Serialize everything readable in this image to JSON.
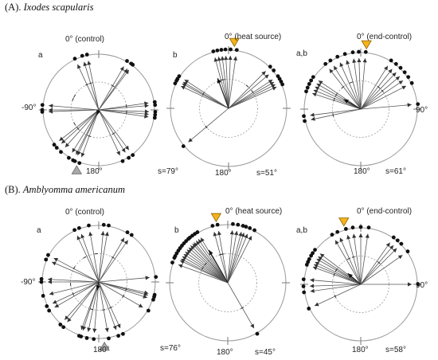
{
  "panels": [
    {
      "letter": "(A)",
      "species": "Ixodes scapularis"
    },
    {
      "letter": "(B)",
      "species": "Amblyomma americanum"
    }
  ],
  "chart_data": [
    {
      "type": "circular",
      "group_label": "a",
      "zero_label": "0° (control)",
      "side_label": "-90°",
      "bottom_label": "180°",
      "s_label": "s=79°",
      "mean_direction_deg": 200,
      "mean_vector_r": 0.1,
      "stimulus_marker": "grey triangle at 200°",
      "directions_deg": [
        335,
        343,
        348,
        30,
        35,
        37,
        268,
        270,
        275,
        82,
        85,
        92,
        95,
        98,
        143,
        148,
        155,
        200,
        205,
        207,
        212,
        222,
        228,
        232
      ],
      "hash_deg": [
        335,
        343,
        300,
        30,
        240,
        292,
        82,
        95,
        148,
        200,
        228
      ]
    },
    {
      "type": "circular",
      "group_label": "b",
      "zero_label": "0° (heat source)",
      "side_label": "",
      "bottom_label": "180°",
      "s_label": "s=51°",
      "mean_direction_deg": 340,
      "mean_vector_r": 0.55,
      "stimulus_marker": "orange triangle at 5°",
      "directions_deg": [
        345,
        349,
        353,
        357,
        2,
        8,
        295,
        298,
        300,
        303,
        45,
        50,
        57,
        60,
        63,
        66,
        230
      ],
      "hash_deg": [
        345,
        350,
        300,
        40,
        55,
        230
      ]
    },
    {
      "type": "circular",
      "group_label": "a,b",
      "zero_label": "0° (end-control)",
      "side_label": "90°",
      "bottom_label": "180°",
      "s_label": "s=61°",
      "mean_direction_deg": 300,
      "mean_vector_r": 0.35,
      "stimulus_marker": "orange triangle at 5°",
      "directions_deg": [
        322,
        328,
        336,
        344,
        352,
        358,
        5,
        288,
        292,
        296,
        300,
        304,
        258,
        263,
        32,
        38,
        44,
        50,
        56,
        63,
        85
      ],
      "hash_deg": [
        320,
        340,
        290,
        300,
        258,
        40,
        50
      ]
    },
    {
      "type": "circular",
      "group_label": "a",
      "zero_label": "0° (control)",
      "side_label": "-90°",
      "bottom_label": "180°",
      "s_label": "s=76°",
      "mean_direction_deg": 190,
      "mean_vector_r": 0.15,
      "stimulus_marker": "grey triangle at 175°",
      "directions_deg": [
        335,
        340,
        350,
        5,
        10,
        30,
        35,
        293,
        298,
        270,
        273,
        256,
        240,
        245,
        218,
        222,
        192,
        198,
        200,
        185,
        170,
        160,
        155,
        120,
        103,
        108,
        85,
        105
      ],
      "hash_deg": [
        330,
        355,
        300,
        30,
        265,
        245,
        195,
        170,
        155,
        120,
        105
      ]
    },
    {
      "type": "circular",
      "group_label": "b",
      "zero_label": "0° (heat source)",
      "side_label": "",
      "bottom_label": "180°",
      "s_label": "s=45°",
      "mean_direction_deg": 330,
      "mean_vector_r": 0.65,
      "stimulus_marker": "orange triangle at 350°",
      "directions_deg": [
        345,
        350,
        5,
        10,
        15,
        18,
        22,
        27,
        290,
        295,
        297,
        300,
        303,
        306,
        309,
        312,
        315,
        318,
        320,
        323,
        326,
        329,
        150
      ],
      "hash_deg": [
        345,
        350,
        300,
        310,
        150
      ]
    },
    {
      "type": "circular",
      "group_label": "a,b",
      "zero_label": "0° (end-control)",
      "side_label": "90°",
      "bottom_label": "180°",
      "s_label": "s=58°",
      "mean_direction_deg": 310,
      "mean_vector_r": 0.3,
      "stimulus_marker": "orange triangle at 345°",
      "directions_deg": [
        330,
        336,
        345,
        352,
        0,
        8,
        290,
        293,
        296,
        300,
        303,
        307,
        275,
        245,
        35,
        40,
        45,
        55,
        90,
        262,
        268
      ],
      "hash_deg": [
        335,
        345,
        300,
        290,
        40,
        245
      ]
    }
  ]
}
